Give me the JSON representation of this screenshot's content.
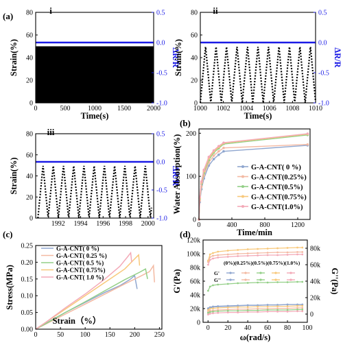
{
  "chart_data": [
    {
      "id": "a-i",
      "type": "line",
      "panel_label": "(a)",
      "sub_label": "i",
      "xlabel": "Time(s)",
      "ylabel": "Strain(%)",
      "y2label": "ΔR/R",
      "xlim": [
        0,
        2000
      ],
      "ylim": [
        0,
        80
      ],
      "y2lim": [
        -1.0,
        0.5
      ],
      "xticks": [
        "0",
        "500",
        "1000",
        "1500",
        "2000"
      ],
      "yticks": [
        "0",
        "20",
        "40",
        "60",
        "80"
      ],
      "y2ticks": [
        "-1.0",
        "-0.5",
        "0.0",
        "0.5"
      ],
      "series": [
        {
          "axis": "left",
          "style": "dense-fill",
          "x": [
            0,
            2000
          ],
          "y_min": 0,
          "y_max": 50,
          "color": "#000000"
        },
        {
          "axis": "right",
          "style": "flat-line",
          "x": [
            0,
            2000
          ],
          "y": [
            0.0,
            0.0
          ],
          "color": "#1a1ae6"
        }
      ]
    },
    {
      "id": "a-ii",
      "type": "line",
      "sub_label": "ii",
      "xlabel": "Time(s)",
      "ylabel": "Strain(%)",
      "y2label": "ΔR/R",
      "xlim": [
        1000,
        1010
      ],
      "ylim": [
        0,
        80
      ],
      "y2lim": [
        -1.0,
        0.5
      ],
      "xticks": [
        "1000",
        "1002",
        "1004",
        "1006",
        "1008",
        "1010"
      ],
      "yticks": [
        "0",
        "20",
        "40",
        "60",
        "80"
      ],
      "y2ticks": [
        "-1.0",
        "-0.5",
        "0.0",
        "0.5"
      ],
      "series": [
        {
          "axis": "left",
          "style": "dotted-wave",
          "x_start": 1000,
          "x_end": 1010,
          "period": 0.91,
          "amplitude": 50,
          "color": "#000000"
        },
        {
          "axis": "right",
          "style": "flat-line",
          "x": [
            1000,
            1010
          ],
          "y": [
            0.0,
            0.0
          ],
          "color": "#1a1ae6"
        }
      ]
    },
    {
      "id": "a-iii",
      "type": "line",
      "sub_label": "iii",
      "xlabel": "",
      "ylabel": "Strain(%)",
      "y2label": "ΔR/R",
      "xlim": [
        1990,
        2000.5
      ],
      "ylim": [
        0,
        80
      ],
      "y2lim": [
        -1.0,
        0.5
      ],
      "xticks": [
        "1992",
        "1994",
        "1996",
        "1998",
        "2000"
      ],
      "yticks": [
        "0",
        "20",
        "40",
        "60",
        "80"
      ],
      "y2ticks": [
        "-1.0",
        "-0.5",
        "0.0",
        "0.5"
      ],
      "series": [
        {
          "axis": "left",
          "style": "dotted-wave",
          "x_start": 1990.2,
          "x_end": 2000.3,
          "period": 0.91,
          "amplitude": 50,
          "color": "#000000"
        },
        {
          "axis": "right",
          "style": "flat-line",
          "x": [
            1990,
            2000.5
          ],
          "y": [
            0.0,
            0.0
          ],
          "color": "#1a1ae6"
        }
      ]
    },
    {
      "id": "b",
      "type": "line",
      "panel_label": "(b)",
      "xlabel": "Time/min",
      "ylabel": "Water Absorption(%)",
      "xlim": [
        0,
        1350
      ],
      "ylim": [
        0,
        210
      ],
      "xticks": [
        "0",
        "400",
        "800",
        "1200"
      ],
      "yticks": [
        "0",
        "100",
        "200"
      ],
      "legend_position": "center-right",
      "series": [
        {
          "name": "G-A-CNT( 0 %)",
          "color": "#8fa6cf",
          "x": [
            0,
            10,
            30,
            60,
            120,
            180,
            240,
            300,
            1320
          ],
          "y": [
            0,
            40,
            70,
            95,
            125,
            140,
            150,
            158,
            172
          ]
        },
        {
          "name": "G-A-CNT(0.25%)",
          "color": "#f3b9a2",
          "x": [
            0,
            10,
            30,
            60,
            120,
            180,
            240,
            300,
            1320
          ],
          "y": [
            0,
            44,
            76,
            102,
            132,
            148,
            158,
            166,
            174
          ]
        },
        {
          "name": "G-A-CNT(0.5%)",
          "color": "#93cf87",
          "x": [
            0,
            10,
            30,
            60,
            120,
            180,
            240,
            300,
            1320
          ],
          "y": [
            0,
            48,
            82,
            108,
            138,
            155,
            165,
            175,
            196
          ]
        },
        {
          "name": "G-A-CNT(0.75%)",
          "color": "#f8c87a",
          "x": [
            0,
            10,
            30,
            60,
            120,
            180,
            240,
            300,
            1320
          ],
          "y": [
            0,
            50,
            85,
            112,
            142,
            158,
            168,
            177,
            198
          ]
        },
        {
          "name": "G-A-CNT(1.0%)",
          "color": "#f3a9b7",
          "x": [
            0,
            10,
            30,
            60,
            120,
            180,
            240,
            300,
            1320
          ],
          "y": [
            0,
            52,
            88,
            115,
            145,
            160,
            170,
            178,
            199
          ]
        }
      ]
    },
    {
      "id": "c",
      "type": "line",
      "panel_label": "(c)",
      "xlabel": "Strain（%）",
      "ylabel": "Stress(MPa)",
      "xlim": [
        0,
        255
      ],
      "ylim": [
        0,
        0.25
      ],
      "xticks": [
        "0",
        "50",
        "100",
        "150",
        "200",
        "250"
      ],
      "yticks": [
        "0.00",
        "0.05",
        "0.10",
        "0.15",
        "0.20",
        "0.25"
      ],
      "legend_position": "top-left",
      "series": [
        {
          "name": "G-A-CNT( 0 %)",
          "color": "#8fa6cf",
          "x": [
            0,
            20,
            60,
            100,
            140,
            170,
            190,
            200,
            205
          ],
          "y": [
            0,
            0.017,
            0.05,
            0.08,
            0.11,
            0.13,
            0.148,
            0.16,
            0.12
          ]
        },
        {
          "name": "G-A-CNT( 0.25 %)",
          "color": "#f3b9a2",
          "x": [
            0,
            20,
            60,
            100,
            140,
            180,
            210,
            230,
            238,
            240
          ],
          "y": [
            0,
            0.015,
            0.045,
            0.075,
            0.105,
            0.135,
            0.157,
            0.172,
            0.19,
            0.14
          ]
        },
        {
          "name": "G-A-CNT( 0.5 %)",
          "color": "#93cf87",
          "x": [
            0,
            20,
            60,
            100,
            140,
            180,
            210,
            222,
            226
          ],
          "y": [
            0,
            0.016,
            0.05,
            0.082,
            0.115,
            0.148,
            0.17,
            0.18,
            0.15
          ]
        },
        {
          "name": "G-A-CNT( 0.75%)",
          "color": "#f8c87a",
          "x": [
            0,
            20,
            60,
            100,
            140,
            180,
            200,
            208,
            210
          ],
          "y": [
            0,
            0.02,
            0.06,
            0.1,
            0.14,
            0.18,
            0.21,
            0.222,
            0.19
          ]
        },
        {
          "name": "G-A-CNT( 1.0 %)",
          "color": "#f3a9b7",
          "x": [
            0,
            20,
            60,
            100,
            140,
            170,
            185,
            192,
            194
          ],
          "y": [
            0,
            0.02,
            0.064,
            0.105,
            0.15,
            0.188,
            0.215,
            0.228,
            0.2
          ]
        }
      ]
    },
    {
      "id": "d",
      "type": "line",
      "panel_label": "(d)",
      "xlabel": "ω(rad/s)",
      "ylabel": "G'(Pa)",
      "y2label": "G''(Pa)",
      "xlim": [
        -5,
        100
      ],
      "ylim": [
        0,
        120000
      ],
      "y2lim": [
        -10000,
        90000
      ],
      "xticks": [
        "0",
        "20",
        "40",
        "60",
        "80",
        "100"
      ],
      "yticks": [
        "0",
        "20k",
        "40k",
        "60k",
        "80k",
        "100k",
        "120k"
      ],
      "y2ticks": [
        "0",
        "20k",
        "40k",
        "60k",
        "80k"
      ],
      "legend_header": "(0%)(0.25%)(0.5%)(0.75%)(1.0%)",
      "legend_rows": [
        "G'",
        "G''"
      ],
      "legend_position": "upper-left",
      "x": [
        0.1,
        2,
        5,
        10,
        20,
        30,
        40,
        50,
        60,
        70,
        80,
        90,
        95
      ],
      "series": [
        {
          "name": "G' 0%",
          "axis": "left",
          "color": "#8fa6cf",
          "y": [
            20500,
            22000,
            23000,
            23500,
            24000,
            24500,
            25000,
            25000,
            25500,
            25500,
            26000,
            26000,
            26000
          ]
        },
        {
          "name": "G' 0.25%",
          "axis": "left",
          "color": "#f3b9a2",
          "y": [
            88000,
            95000,
            97000,
            98000,
            99000,
            100000,
            100500,
            101000,
            101500,
            102000,
            102000,
            102500,
            102500
          ]
        },
        {
          "name": "G' 0.5%",
          "axis": "left",
          "color": "#93cf87",
          "y": [
            46000,
            52000,
            54000,
            55000,
            56000,
            57000,
            57500,
            58000,
            58000,
            58500,
            58500,
            59000,
            59000
          ]
        },
        {
          "name": "G' 0.75%",
          "axis": "left",
          "color": "#f8c87a",
          "y": [
            90000,
            99000,
            101000,
            103000,
            104500,
            105500,
            106500,
            107000,
            107500,
            108000,
            108500,
            109000,
            109000
          ]
        },
        {
          "name": "G' 1.0%",
          "axis": "left",
          "color": "#f3a9b7",
          "y": [
            84000,
            91000,
            93000,
            94500,
            95500,
            96500,
            97000,
            97500,
            98000,
            98000,
            98500,
            99000,
            99000
          ]
        },
        {
          "name": "G'' 0%",
          "axis": "right",
          "color": "#8fa6cf",
          "y": [
            6000,
            7500,
            8500,
            9000,
            9500,
            10000,
            10500,
            10500,
            11000,
            11000,
            11500,
            11500,
            11500
          ]
        },
        {
          "name": "G'' 0.25%",
          "axis": "right",
          "color": "#f3b9a2",
          "y": [
            3000,
            4000,
            4500,
            5000,
            5500,
            6000,
            6000,
            6500,
            6500,
            7000,
            7000,
            7500,
            7500
          ]
        },
        {
          "name": "G'' 0.5%",
          "axis": "right",
          "color": "#93cf87",
          "y": [
            1500,
            2500,
            3000,
            3500,
            4000,
            4000,
            4500,
            4500,
            5000,
            5000,
            5000,
            5500,
            5500
          ]
        },
        {
          "name": "G'' 0.75%",
          "axis": "right",
          "color": "#f8c87a",
          "y": [
            5000,
            6500,
            7000,
            7500,
            8000,
            8500,
            8500,
            9000,
            9000,
            9500,
            9500,
            10000,
            10000
          ]
        },
        {
          "name": "G'' 1.0%",
          "axis": "right",
          "color": "#f3a9b7",
          "y": [
            -500,
            500,
            1000,
            1500,
            2000,
            2000,
            2500,
            2500,
            3000,
            3000,
            3000,
            3500,
            3500
          ]
        }
      ]
    }
  ]
}
